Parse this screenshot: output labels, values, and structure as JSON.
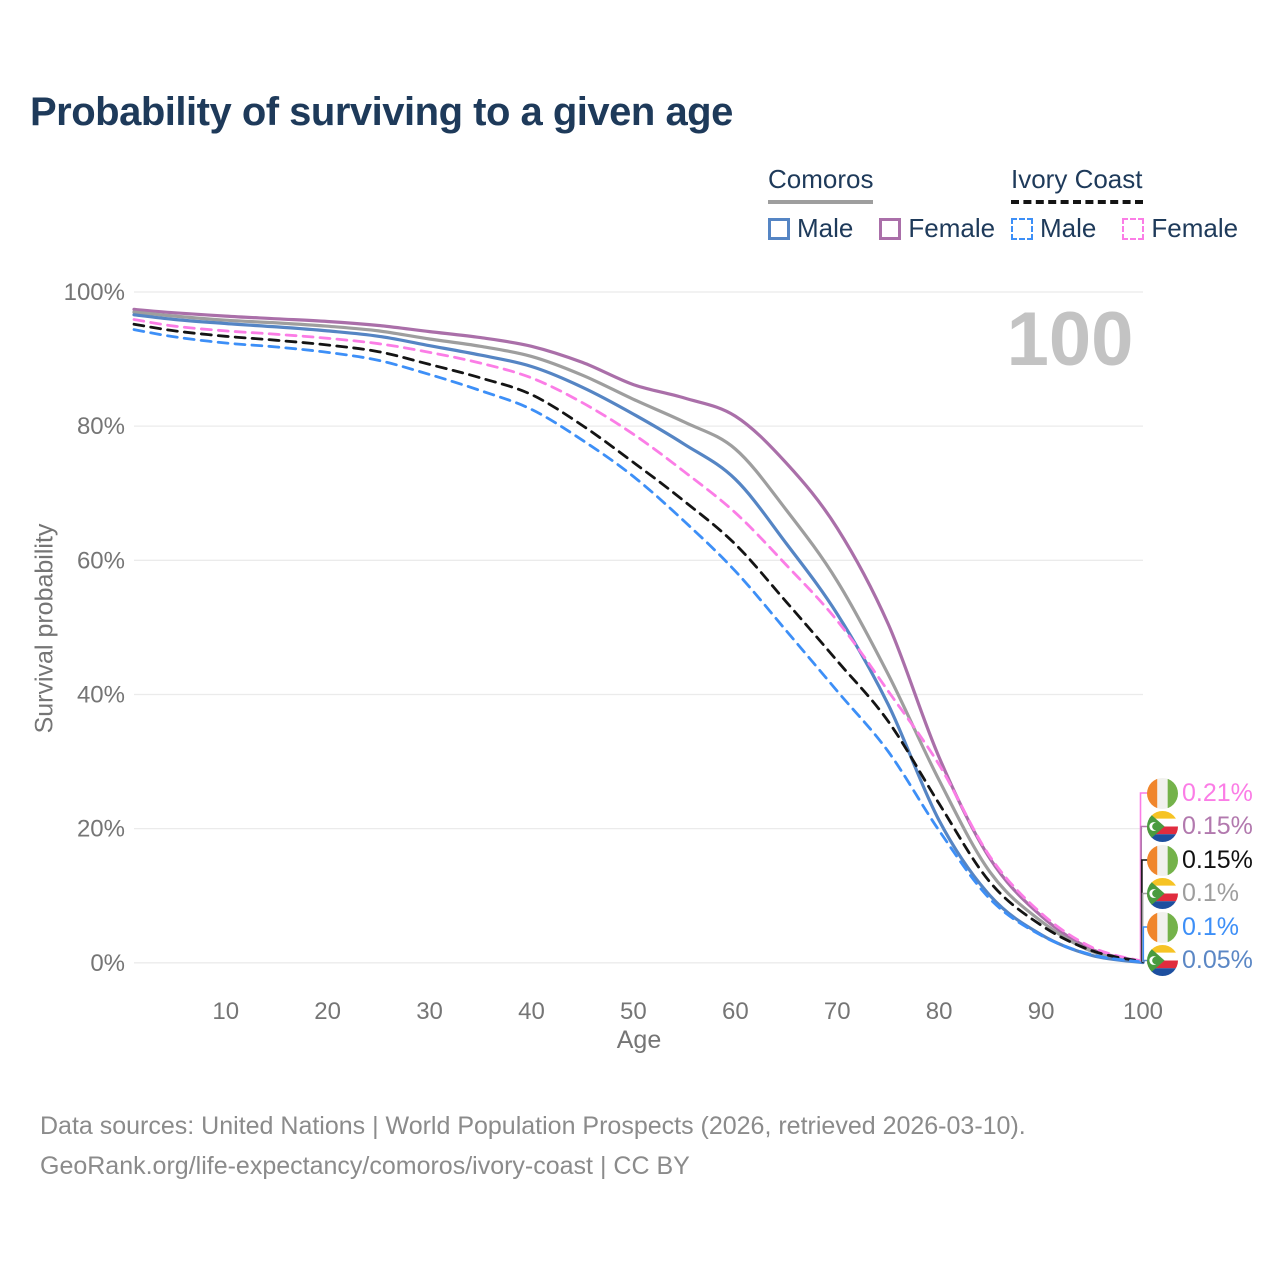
{
  "title": "Probability of surviving to a given age",
  "legend": {
    "groups": [
      {
        "name": "Comoros",
        "line_style": "solid",
        "line_color": "#9e9e9e",
        "items": [
          {
            "label": "Male",
            "color": "#5585c4",
            "dashed": false
          },
          {
            "label": "Female",
            "color": "#aa6fa9",
            "dashed": false
          }
        ]
      },
      {
        "name": "Ivory Coast",
        "line_style": "dashed",
        "line_color": "#141414",
        "items": [
          {
            "label": "Male",
            "color": "#3d8ff7",
            "dashed": true
          },
          {
            "label": "Female",
            "color": "#fb7de6",
            "dashed": true
          }
        ]
      }
    ]
  },
  "chart_data": {
    "type": "line",
    "title": "Probability of surviving to a given age",
    "xlabel": "Age",
    "ylabel": "Survival probability",
    "xlim": [
      1,
      100
    ],
    "ylim": [
      0,
      100
    ],
    "xticks": [
      10,
      20,
      30,
      40,
      50,
      60,
      70,
      80,
      90,
      100
    ],
    "yticks": [
      0,
      20,
      40,
      60,
      80,
      100
    ],
    "ytick_suffix": "%",
    "grid": "horizontal-only",
    "legend_position": "top-right",
    "hover_age_watermark": "100",
    "x": [
      1,
      5,
      10,
      15,
      20,
      25,
      30,
      35,
      40,
      45,
      50,
      55,
      60,
      65,
      70,
      75,
      80,
      85,
      90,
      95,
      100
    ],
    "series": [
      {
        "name": "Comoros Female",
        "country": "Comoros",
        "sex": "Female",
        "color": "#aa6fa9",
        "dash": false,
        "values": [
          97.4,
          96.9,
          96.4,
          96.0,
          95.6,
          95.0,
          94.1,
          93.2,
          91.9,
          89.5,
          86.2,
          84.2,
          81.5,
          74.5,
          64.8,
          50.5,
          30.6,
          15.5,
          7.0,
          2.0,
          0.15
        ]
      },
      {
        "name": "Comoros All",
        "country": "Comoros",
        "sex": "Both",
        "color": "#9e9e9e",
        "dash": false,
        "values": [
          97.0,
          96.4,
          95.8,
          95.4,
          94.9,
          94.2,
          93.0,
          91.9,
          90.4,
          87.6,
          84.0,
          80.6,
          76.6,
          67.5,
          56.9,
          43.0,
          27.2,
          13.5,
          6.2,
          1.7,
          0.1
        ]
      },
      {
        "name": "Comoros Male",
        "country": "Comoros",
        "sex": "Male",
        "color": "#5585c4",
        "dash": false,
        "values": [
          96.6,
          95.9,
          95.3,
          94.8,
          94.2,
          93.4,
          92.0,
          90.6,
          88.9,
          85.8,
          81.8,
          77.3,
          72.1,
          62.5,
          52.0,
          38.5,
          21.2,
          10.0,
          4.2,
          1.1,
          0.05
        ]
      },
      {
        "name": "Ivory Coast Female",
        "country": "Ivory Coast",
        "sex": "Female",
        "color": "#fb7de6",
        "dash": true,
        "values": [
          95.9,
          94.9,
          94.2,
          93.7,
          93.1,
          92.3,
          91.0,
          89.4,
          87.2,
          83.5,
          78.8,
          73.2,
          67.1,
          59.3,
          51.0,
          40.5,
          29.5,
          15.8,
          7.4,
          2.3,
          0.21
        ]
      },
      {
        "name": "Ivory Coast All",
        "country": "Ivory Coast",
        "sex": "Both",
        "color": "#141414",
        "dash": true,
        "values": [
          95.2,
          94.2,
          93.4,
          92.8,
          92.1,
          91.1,
          89.2,
          87.2,
          84.7,
          80.1,
          74.6,
          68.8,
          62.4,
          53.8,
          45.0,
          36.0,
          23.7,
          12.0,
          5.6,
          1.8,
          0.15
        ]
      },
      {
        "name": "Ivory Coast Male",
        "country": "Ivory Coast",
        "sex": "Male",
        "color": "#3d8ff7",
        "dash": true,
        "values": [
          94.4,
          93.3,
          92.4,
          91.8,
          91.0,
          89.8,
          87.7,
          85.3,
          82.5,
          77.9,
          72.5,
          65.8,
          58.4,
          49.5,
          40.5,
          31.5,
          19.7,
          9.5,
          4.1,
          1.2,
          0.1
        ]
      }
    ],
    "endpoint_labels": [
      {
        "value": "0.21%",
        "series": "Ivory Coast Female",
        "flag": "ivory-coast",
        "color": "#fb7de6"
      },
      {
        "value": "0.15%",
        "series": "Comoros Female",
        "flag": "comoros",
        "color": "#b279ae"
      },
      {
        "value": "0.15%",
        "series": "Ivory Coast All",
        "flag": "ivory-coast",
        "color": "#111111"
      },
      {
        "value": "0.1%",
        "series": "Comoros All",
        "flag": "comoros",
        "color": "#9e9e9e"
      },
      {
        "value": "0.1%",
        "series": "Ivory Coast Male",
        "flag": "ivory-coast",
        "color": "#3d8ff7"
      },
      {
        "value": "0.05%",
        "series": "Comoros Male",
        "flag": "comoros",
        "color": "#5b87c5"
      }
    ]
  },
  "footer": {
    "line1": "Data sources: United Nations | World Population Prospects (2026, retrieved 2026-03-10).",
    "line2": "GeoRank.org/life-expectancy/comoros/ivory-coast | CC BY"
  }
}
